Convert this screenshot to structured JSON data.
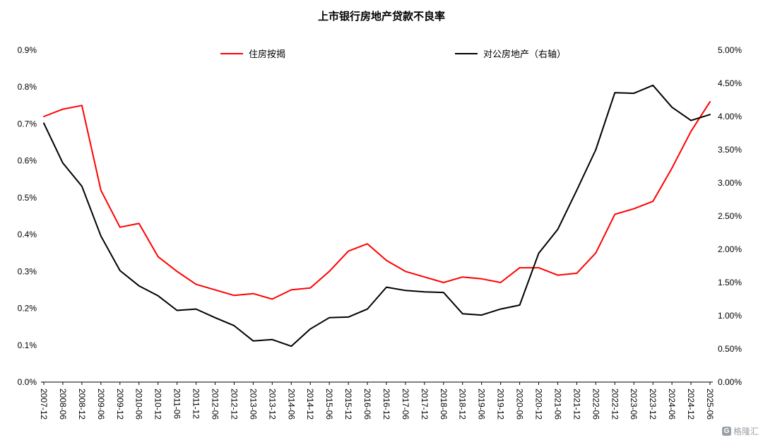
{
  "title": "上市银行房地产贷款不良率",
  "legend": [
    {
      "label": "住房按揭",
      "color": "#FF0000"
    },
    {
      "label": "对公房地产（右轴）",
      "color": "#000000"
    }
  ],
  "watermark": {
    "logo_glyph": "G",
    "text": "格隆汇"
  },
  "chart_data": {
    "type": "line",
    "title": "上市银行房地产贷款不良率",
    "categories": [
      "2007-12",
      "2008-06",
      "2008-12",
      "2009-06",
      "2009-12",
      "2010-06",
      "2010-12",
      "2011-06",
      "2011-12",
      "2012-06",
      "2012-12",
      "2013-06",
      "2013-12",
      "2014-06",
      "2014-12",
      "2015-06",
      "2015-12",
      "2016-06",
      "2016-12",
      "2017-06",
      "2017-12",
      "2018-06",
      "2018-12",
      "2019-06",
      "2019-12",
      "2020-06",
      "2020-12",
      "2021-06",
      "2021-12",
      "2022-06",
      "2022-12",
      "2023-06",
      "2023-12",
      "2024-06",
      "2024-12",
      "2025-06"
    ],
    "series": [
      {
        "name": "住房按揭",
        "axis": "left",
        "color": "#FF0000",
        "values": [
          0.72,
          0.74,
          0.75,
          0.52,
          0.42,
          0.43,
          0.34,
          0.3,
          0.265,
          0.25,
          0.235,
          0.24,
          0.225,
          0.25,
          0.255,
          0.3,
          0.355,
          0.375,
          0.33,
          0.3,
          0.285,
          0.27,
          0.285,
          0.28,
          0.27,
          0.31,
          0.31,
          0.29,
          0.295,
          0.35,
          0.455,
          0.47,
          0.49,
          0.58,
          0.68,
          0.76
        ]
      },
      {
        "name": "对公房地产（右轴）",
        "axis": "right",
        "color": "#000000",
        "values": [
          3.9,
          3.3,
          2.95,
          2.2,
          1.68,
          1.45,
          1.3,
          1.08,
          1.1,
          0.97,
          0.85,
          0.62,
          0.64,
          0.54,
          0.8,
          0.97,
          0.98,
          1.1,
          1.43,
          1.38,
          1.36,
          1.35,
          1.03,
          1.01,
          1.1,
          1.16,
          1.94,
          2.3,
          2.89,
          3.5,
          4.36,
          4.35,
          4.47,
          4.14,
          3.94,
          4.03
        ]
      }
    ],
    "left_axis": {
      "min": 0,
      "max": 0.9,
      "step": 0.1,
      "unit": "%",
      "tick_labels": [
        "0.0%",
        "0.1%",
        "0.2%",
        "0.3%",
        "0.4%",
        "0.5%",
        "0.6%",
        "0.7%",
        "0.8%",
        "0.9%"
      ]
    },
    "right_axis": {
      "min": 0,
      "max": 5,
      "step": 0.5,
      "unit": "%",
      "tick_labels": [
        "0.00%",
        "0.50%",
        "1.00%",
        "1.50%",
        "2.00%",
        "2.50%",
        "3.00%",
        "3.50%",
        "4.00%",
        "4.50%",
        "5.00%"
      ]
    },
    "grid": false,
    "legend_position": "top"
  }
}
